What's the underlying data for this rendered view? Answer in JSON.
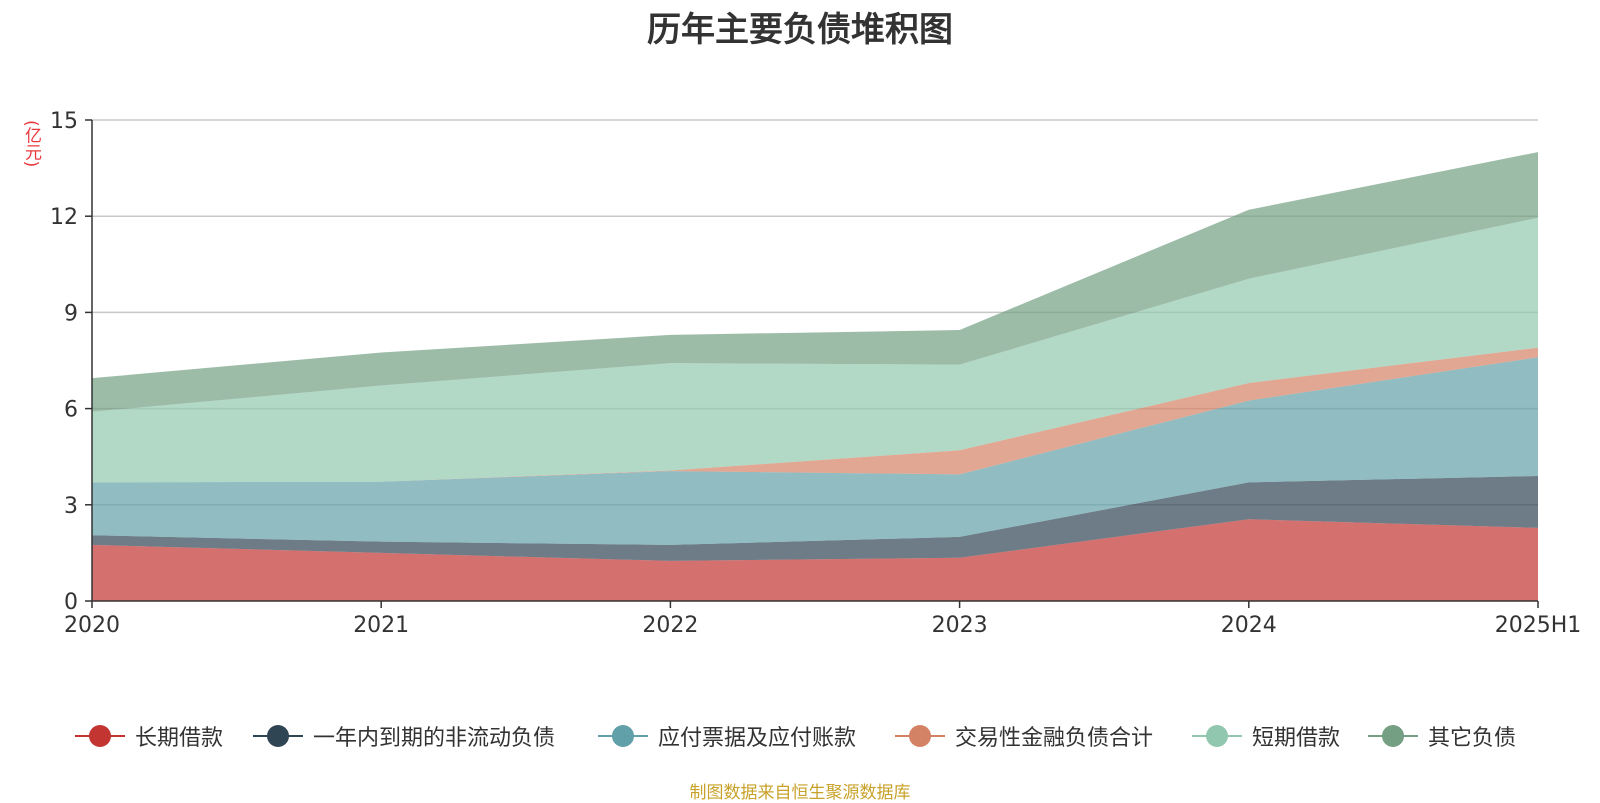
{
  "chart_data": {
    "type": "area",
    "stacked": true,
    "title": "历年主要负债堆积图",
    "ylabel": "(亿元)",
    "xlabel": "",
    "categories": [
      "2020",
      "2021",
      "2022",
      "2023",
      "2024",
      "2025H1"
    ],
    "ylim": [
      0,
      15
    ],
    "yticks": [
      0,
      3,
      6,
      9,
      12,
      15
    ],
    "grid": true,
    "legend_position": "bottom",
    "series": [
      {
        "name": "长期借款",
        "color": "#c23531",
        "values": [
          1.75,
          1.5,
          1.25,
          1.35,
          2.55,
          2.28
        ]
      },
      {
        "name": "一年内到期的非流动负债",
        "color": "#2f4554",
        "values": [
          0.3,
          0.35,
          0.5,
          0.65,
          1.15,
          1.62
        ]
      },
      {
        "name": "应付票据及应付账款",
        "color": "#61a0a8",
        "values": [
          1.65,
          1.87,
          2.3,
          1.95,
          2.55,
          3.7
        ]
      },
      {
        "name": "交易性金融负债合计",
        "color": "#d48265",
        "values": [
          0,
          0,
          0.02,
          0.75,
          0.55,
          0.3
        ]
      },
      {
        "name": "短期借款",
        "color": "#91c7ae",
        "values": [
          2.2,
          3.0,
          3.35,
          2.67,
          3.25,
          4.05
        ]
      },
      {
        "name": "其它负债",
        "color": "#749f83",
        "values": [
          1.05,
          1.03,
          0.88,
          1.08,
          2.15,
          2.05
        ]
      }
    ]
  },
  "source_note": "制图数据来自恒生聚源数据库"
}
